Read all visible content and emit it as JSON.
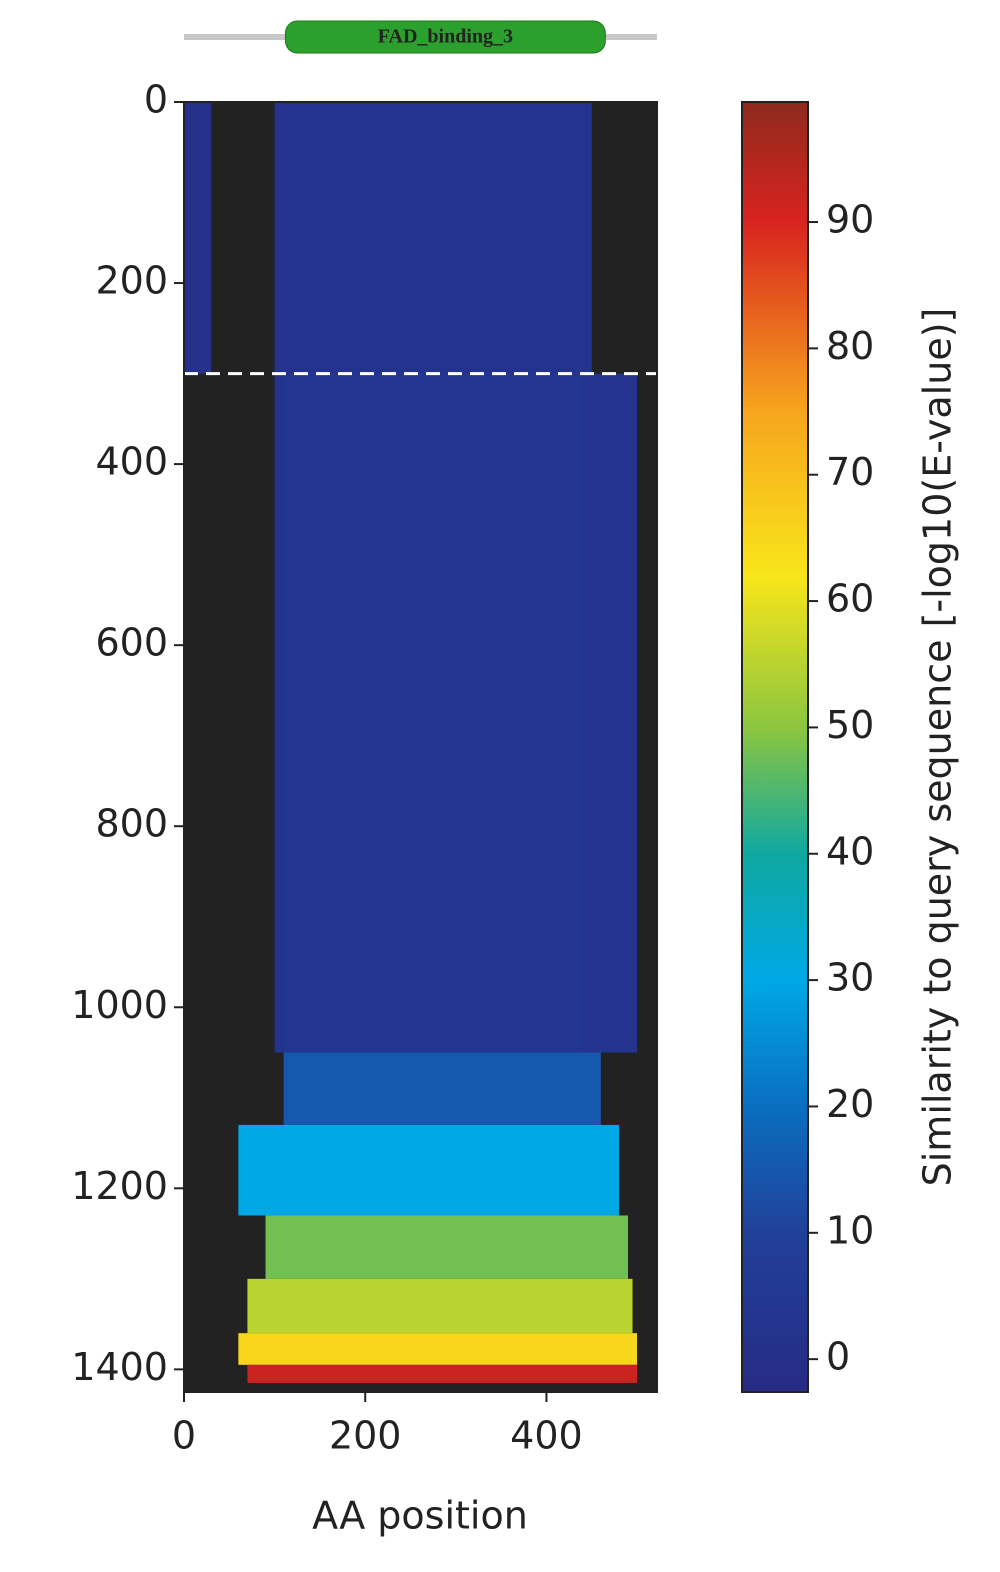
{
  "chart_data": {
    "type": "heatmap",
    "domain": {
      "label": "FAD_binding_3",
      "start": 112,
      "end": 465,
      "color": "#2ca02c"
    },
    "x_label": "AA position",
    "xlim": [
      0,
      522
    ],
    "xticks": [
      0,
      200,
      400
    ],
    "ylim": [
      0,
      1425
    ],
    "yticks": [
      0,
      200,
      400,
      600,
      800,
      1000,
      1200,
      1400
    ],
    "hline": 300,
    "background": "#222222",
    "cells": [
      {
        "rows": [
          0,
          300
        ],
        "positions": [
          0,
          30
        ],
        "value": 1
      },
      {
        "rows": [
          0,
          300
        ],
        "positions": [
          100,
          450
        ],
        "value": 2
      },
      {
        "rows": [
          300,
          1050
        ],
        "positions": [
          100,
          500
        ],
        "value": 2
      },
      {
        "rows": [
          300,
          1050
        ],
        "positions": [
          110,
          440
        ],
        "value": 4
      },
      {
        "rows": [
          1050,
          1130
        ],
        "positions": [
          110,
          460
        ],
        "value": 15
      },
      {
        "rows": [
          1130,
          1230
        ],
        "positions": [
          60,
          480
        ],
        "value": 30
      },
      {
        "rows": [
          1230,
          1300
        ],
        "positions": [
          90,
          490
        ],
        "value": 48
      },
      {
        "rows": [
          1300,
          1360
        ],
        "positions": [
          70,
          495
        ],
        "value": 55
      },
      {
        "rows": [
          1360,
          1395
        ],
        "positions": [
          60,
          500
        ],
        "value": 65
      },
      {
        "rows": [
          1395,
          1415
        ],
        "positions": [
          70,
          500
        ],
        "value": 92
      }
    ],
    "colorbar": {
      "label": "Similarity to query sequence [-log10(E-value)]",
      "lim": [
        -2.6,
        99.5
      ],
      "ticks": [
        0,
        10,
        20,
        30,
        40,
        50,
        60,
        70,
        80,
        90
      ],
      "stops": [
        {
          "value": -2.6,
          "color": "#262b85"
        },
        {
          "value": 10,
          "color": "#21409a"
        },
        {
          "value": 20,
          "color": "#0a6fc0"
        },
        {
          "value": 30,
          "color": "#00a8e6"
        },
        {
          "value": 40,
          "color": "#0fa8a0"
        },
        {
          "value": 50,
          "color": "#8cc63f"
        },
        {
          "value": 62,
          "color": "#f8e51a"
        },
        {
          "value": 75,
          "color": "#f7a51e"
        },
        {
          "value": 90,
          "color": "#d9231f"
        },
        {
          "value": 99.5,
          "color": "#8e2a1e"
        }
      ]
    }
  }
}
